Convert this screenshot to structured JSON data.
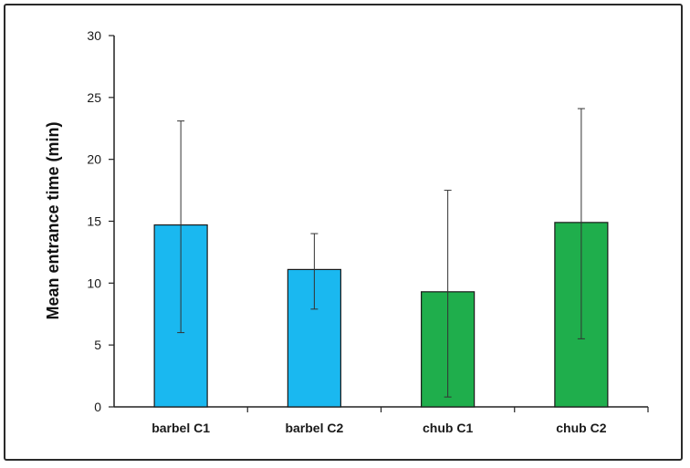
{
  "chart_data": {
    "type": "bar",
    "title": "",
    "xlabel": "",
    "ylabel": "Mean entrance time (min)",
    "ylim": [
      0,
      30
    ],
    "yticks": [
      0,
      5,
      10,
      15,
      20,
      25,
      30
    ],
    "grid": false,
    "legend": "none",
    "categories": [
      "barbel C1",
      "barbel C2",
      "chub C1",
      "chub C2"
    ],
    "values": [
      14.7,
      11.1,
      9.3,
      14.9
    ],
    "error_low": [
      6.0,
      7.9,
      0.8,
      5.5
    ],
    "error_high": [
      23.1,
      14.0,
      17.5,
      24.1
    ],
    "bar_colors": [
      "#1ab8f0",
      "#1ab8f0",
      "#1fae4c",
      "#1fae4c"
    ]
  }
}
